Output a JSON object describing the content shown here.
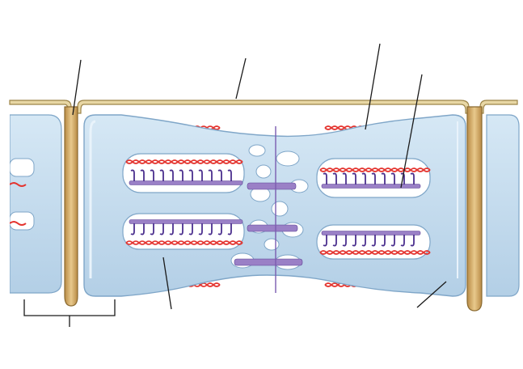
{
  "figure": {
    "kind": "unlabeled-anatomical-diagram",
    "leader_line_count": 6,
    "bracket_count": 1
  },
  "colors": {
    "background": "#ffffff",
    "membrane_fill": "#e7d6a4",
    "membrane_stroke": "#9c8448",
    "tubule_fill": "#c3dcee",
    "tubule_stroke": "#7fa6c8",
    "tubule_highlight": "#e9f3fb",
    "ttubule_fill": "#d2ad6e",
    "ttubule_stroke": "#8a6a30",
    "thick_filament": "#9a80c6",
    "thick_filament_stroke": "#5d4296",
    "myosin_head": "#4b2f8e",
    "thin_filament": "#e4342f",
    "leader_line": "#1a1a1a"
  }
}
